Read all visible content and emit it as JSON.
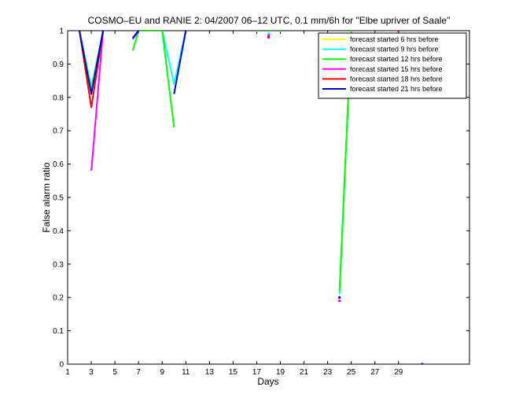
{
  "chart_data": {
    "type": "line",
    "title": "COSMO–EU and RANIE 2: 04/2007 06–12 UTC, 0.1 mm/6h for \"Elbe upriver of Saale\"",
    "xlabel": "Days",
    "ylabel": "False alarm ratio",
    "xlim": [
      1,
      35
    ],
    "ylim": [
      0,
      1
    ],
    "xticks": [
      1,
      3,
      5,
      7,
      9,
      11,
      13,
      15,
      17,
      19,
      21,
      23,
      25,
      27,
      29
    ],
    "yticks": [
      0,
      0.1,
      0.2,
      0.3,
      0.4,
      0.5,
      0.6,
      0.7,
      0.8,
      0.9,
      1
    ],
    "ytick_labels": [
      "0",
      "0.1",
      "0.2",
      "0.3",
      "0.4",
      "0.5",
      "0.6",
      "0.7",
      "0.8",
      "0.9",
      "1"
    ],
    "legend_position": "top-right",
    "grid": false,
    "series": [
      {
        "name": "forecast started 6 hrs before",
        "color": "#ffff00",
        "segments": [
          [
            [
              2,
              1
            ],
            [
              3,
              0.82
            ],
            [
              4,
              1
            ]
          ],
          [
            [
              6.5,
              0.98
            ],
            [
              7,
              1
            ]
          ],
          [
            [
              24,
              0.21
            ],
            [
              25,
              1
            ]
          ]
        ],
        "points": [
          [
            18,
            0.99
          ]
        ]
      },
      {
        "name": "forecast started 9 hrs before",
        "color": "#00ffff",
        "segments": [
          [
            [
              2,
              1
            ],
            [
              3,
              0.83
            ],
            [
              4,
              1
            ]
          ],
          [
            [
              6.5,
              0.98
            ],
            [
              7,
              1
            ]
          ],
          [
            [
              9,
              1
            ],
            [
              10,
              0.84
            ],
            [
              11,
              1
            ]
          ],
          [
            [
              24,
              0.21
            ],
            [
              25,
              1
            ]
          ]
        ],
        "points": [
          [
            18,
            0.99
          ]
        ]
      },
      {
        "name": "forecast started 12 hrs before",
        "color": "#00ff00",
        "segments": [
          [
            [
              2,
              1
            ],
            [
              3,
              0.82
            ],
            [
              4,
              1
            ]
          ],
          [
            [
              6.5,
              0.94
            ],
            [
              7,
              1
            ],
            [
              9,
              1
            ],
            [
              10,
              0.71
            ]
          ],
          [
            [
              24,
              0.22
            ],
            [
              25,
              1
            ]
          ]
        ],
        "points": [
          [
            17,
            1
          ],
          [
            18,
            1
          ],
          [
            19,
            1
          ]
        ]
      },
      {
        "name": "forecast started 15 hrs before",
        "color": "#ff00ff",
        "segments": [
          [
            [
              3,
              0.58
            ],
            [
              4,
              1
            ]
          ],
          [
            [
              6.5,
              0.98
            ],
            [
              7,
              1
            ]
          ]
        ],
        "points": [
          [
            18,
            0.985
          ],
          [
            24,
            0.19
          ],
          [
            29,
            1
          ]
        ]
      },
      {
        "name": "forecast started 18 hrs before",
        "color": "#ff0000",
        "segments": [
          [
            [
              2,
              1
            ],
            [
              3,
              0.77
            ],
            [
              4,
              1
            ]
          ]
        ],
        "points": [
          [
            18,
            0.98
          ],
          [
            29,
            1
          ]
        ]
      },
      {
        "name": "forecast started 21 hrs before",
        "color": "#0000cd",
        "segments": [
          [
            [
              2,
              1
            ],
            [
              3,
              0.81
            ],
            [
              4,
              1
            ]
          ],
          [
            [
              6.5,
              0.975
            ],
            [
              7,
              1
            ]
          ],
          [
            [
              10,
              0.81
            ],
            [
              11,
              1
            ]
          ]
        ],
        "points": [
          [
            24,
            0.2
          ],
          [
            31,
            0
          ]
        ]
      }
    ]
  }
}
